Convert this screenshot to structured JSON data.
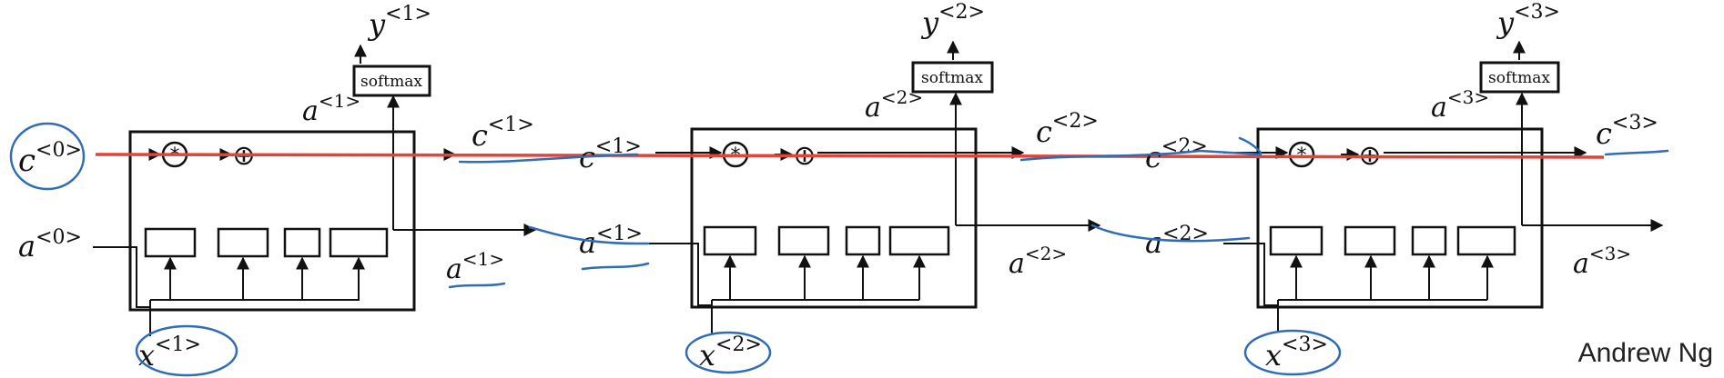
{
  "labels": {
    "softmax": "softmax",
    "star_op": "*",
    "plus_op": "⊕",
    "angle_open": "<",
    "angle_close": ">",
    "c0": {
      "base": "c",
      "idx": "0"
    },
    "a0": {
      "base": "a",
      "idx": "0"
    },
    "y1": {
      "base": "y",
      "idx": "1"
    },
    "y2": {
      "base": "y",
      "idx": "2"
    },
    "y3": {
      "base": "y",
      "idx": "3"
    },
    "a1_top": {
      "base": "a",
      "idx": "1"
    },
    "a2_top": {
      "base": "a",
      "idx": "2"
    },
    "a3_top": {
      "base": "a",
      "idx": "3"
    },
    "c1_out": {
      "base": "c",
      "idx": "1"
    },
    "c1_in": {
      "base": "c",
      "idx": "1"
    },
    "c2_out": {
      "base": "c",
      "idx": "2"
    },
    "c2_in": {
      "base": "c",
      "idx": "2"
    },
    "c3_out": {
      "base": "c",
      "idx": "3"
    },
    "a1_out": {
      "base": "a",
      "idx": "1"
    },
    "a1_in": {
      "base": "a",
      "idx": "1"
    },
    "a2_out": {
      "base": "a",
      "idx": "2"
    },
    "a2_in": {
      "base": "a",
      "idx": "2"
    },
    "a3_out": {
      "base": "a",
      "idx": "3"
    },
    "x1": {
      "base": "x",
      "idx": "1"
    },
    "x2": {
      "base": "x",
      "idx": "2"
    },
    "x3": {
      "base": "x",
      "idx": "3"
    }
  },
  "signature": "Andrew Ng",
  "colors": {
    "ink": "#111111",
    "annotation_blue": "#2f6db5",
    "highlight_red": "#e0443a"
  }
}
